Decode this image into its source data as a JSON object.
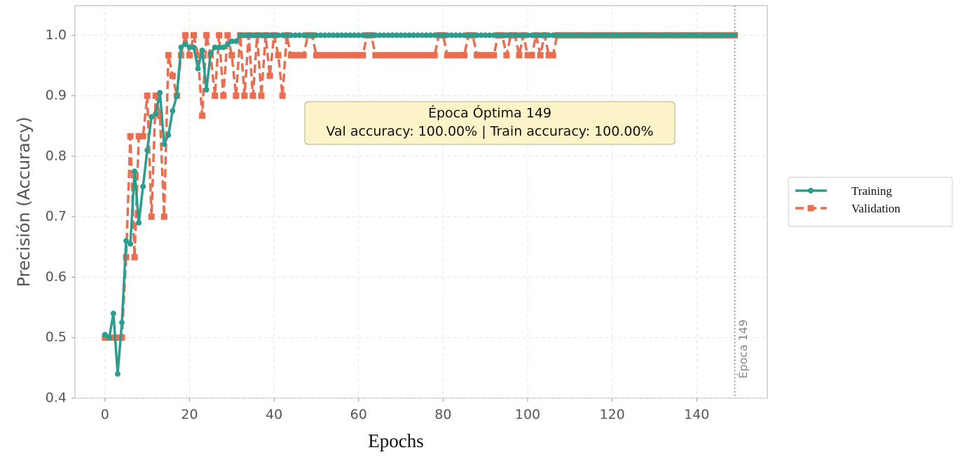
{
  "chart_data": {
    "type": "line",
    "ylabel": "Precisión (Accuracy)",
    "xlabel": "Epochs",
    "annotation": [
      "Época Óptima 149",
      "Val accuracy: 100.00% | Train accuracy: 100.00%"
    ],
    "vline": {
      "x": 149,
      "label": "Época 149"
    },
    "grid": true,
    "legend": "outside right",
    "xlim": [
      -7.1,
      156.7
    ],
    "ylim": [
      0.4,
      1.049
    ],
    "xticks": [
      0,
      20,
      40,
      60,
      80,
      100,
      120,
      140
    ],
    "yticks": [
      0.4,
      0.5,
      0.6,
      0.7,
      0.8,
      0.9,
      {
        "value": 1,
        "label": "1.0"
      }
    ],
    "x": [
      0,
      1,
      2,
      3,
      4,
      5,
      6,
      7,
      8,
      9,
      10,
      11,
      12,
      13,
      14,
      15,
      16,
      17,
      18,
      19,
      20,
      21,
      22,
      23,
      24,
      25,
      26,
      27,
      28,
      29,
      30,
      31,
      32,
      33,
      34,
      35,
      36,
      37,
      38,
      39,
      40,
      41,
      42,
      43,
      44,
      45,
      46,
      47,
      48,
      49,
      50,
      51,
      52,
      53,
      54,
      55,
      56,
      57,
      58,
      59,
      60,
      61,
      62,
      63,
      64,
      65,
      66,
      67,
      68,
      69,
      70,
      71,
      72,
      73,
      74,
      75,
      76,
      77,
      78,
      79,
      80,
      81,
      82,
      83,
      84,
      85,
      86,
      87,
      88,
      89,
      90,
      91,
      92,
      93,
      94,
      95,
      96,
      97,
      98,
      99,
      100,
      101,
      102,
      103,
      104,
      105,
      106,
      107,
      108,
      109,
      110,
      111,
      112,
      113,
      114,
      115,
      116,
      117,
      118,
      119,
      120,
      121,
      122,
      123,
      124,
      125,
      126,
      127,
      128,
      129,
      130,
      131,
      132,
      133,
      134,
      135,
      136,
      137,
      138,
      139,
      140,
      141,
      142,
      143,
      144,
      145,
      146,
      147,
      148,
      149
    ],
    "series": [
      {
        "name": "Training",
        "color": "#2a9d8f",
        "marker": "circle",
        "dash": false,
        "values": [
          0.505,
          0.5,
          0.54,
          0.44,
          0.525,
          0.66,
          0.655,
          0.775,
          0.69,
          0.75,
          0.81,
          0.865,
          0.87,
          0.905,
          0.82,
          0.835,
          0.875,
          0.9,
          0.98,
          0.985,
          0.98,
          0.98,
          0.945,
          0.975,
          0.91,
          0.97,
          0.98,
          0.98,
          0.98,
          0.985,
          0.99,
          0.99,
          1,
          1,
          1,
          1,
          1,
          1,
          1,
          1,
          1,
          1,
          1,
          1,
          1,
          1,
          1,
          1,
          1,
          1,
          1,
          1,
          1,
          1,
          1,
          1,
          1,
          1,
          1,
          1,
          1,
          1,
          1,
          1,
          1,
          1,
          1,
          1,
          1,
          1,
          1,
          1,
          1,
          1,
          1,
          1,
          1,
          1,
          1,
          1,
          1,
          1,
          1,
          1,
          1,
          1,
          1,
          1,
          1,
          1,
          1,
          1,
          1,
          1,
          1,
          1,
          1,
          1,
          1,
          1,
          1,
          1,
          1,
          1,
          1,
          1,
          1,
          1,
          1,
          1,
          1,
          1,
          1,
          1,
          1,
          1,
          1,
          1,
          1,
          1,
          1,
          1,
          1,
          1,
          1,
          1,
          1,
          1,
          1,
          1,
          1,
          1,
          1,
          1,
          1,
          1,
          1,
          1,
          1,
          1,
          1,
          1,
          1,
          1,
          1,
          1,
          1,
          1,
          1,
          1
        ]
      },
      {
        "name": "Validation",
        "color": "#e76f51",
        "marker": "square",
        "dash": true,
        "values": [
          0.5,
          0.5,
          0.5,
          0.5,
          0.5,
          0.633,
          0.833,
          0.633,
          0.833,
          0.833,
          0.9,
          0.7,
          0.9,
          0.867,
          0.7,
          0.967,
          0.933,
          0.9,
          0.967,
          1,
          0.967,
          1,
          0.967,
          0.867,
          1,
          0.967,
          0.9,
          1,
          0.9,
          1,
          0.967,
          0.9,
          1,
          0.9,
          1,
          0.9,
          1,
          0.9,
          1,
          0.933,
          1,
          0.967,
          0.9,
          1,
          0.967,
          0.967,
          0.967,
          0.967,
          1,
          1,
          0.967,
          0.967,
          0.967,
          0.967,
          0.967,
          0.967,
          0.967,
          0.967,
          0.967,
          0.967,
          0.967,
          0.967,
          1,
          1,
          0.967,
          0.967,
          0.967,
          0.967,
          0.967,
          0.967,
          0.967,
          0.967,
          0.967,
          0.967,
          0.967,
          0.967,
          0.967,
          0.967,
          0.967,
          1,
          1,
          0.967,
          0.967,
          0.967,
          0.967,
          0.967,
          1,
          1,
          0.967,
          0.967,
          0.967,
          0.967,
          0.967,
          1,
          1,
          0.967,
          1,
          1,
          0.967,
          1,
          0.967,
          0.967,
          1,
          0.967,
          1,
          0.967,
          0.967,
          1,
          1,
          1,
          1,
          1,
          1,
          1,
          1,
          1,
          1,
          1,
          1,
          1,
          1,
          1,
          1,
          1,
          1,
          1,
          1,
          1,
          1,
          1,
          1,
          1,
          1,
          1,
          1,
          1,
          1,
          1,
          1,
          1,
          1,
          1,
          1,
          1,
          1,
          1,
          1,
          1,
          1,
          1
        ]
      }
    ]
  }
}
